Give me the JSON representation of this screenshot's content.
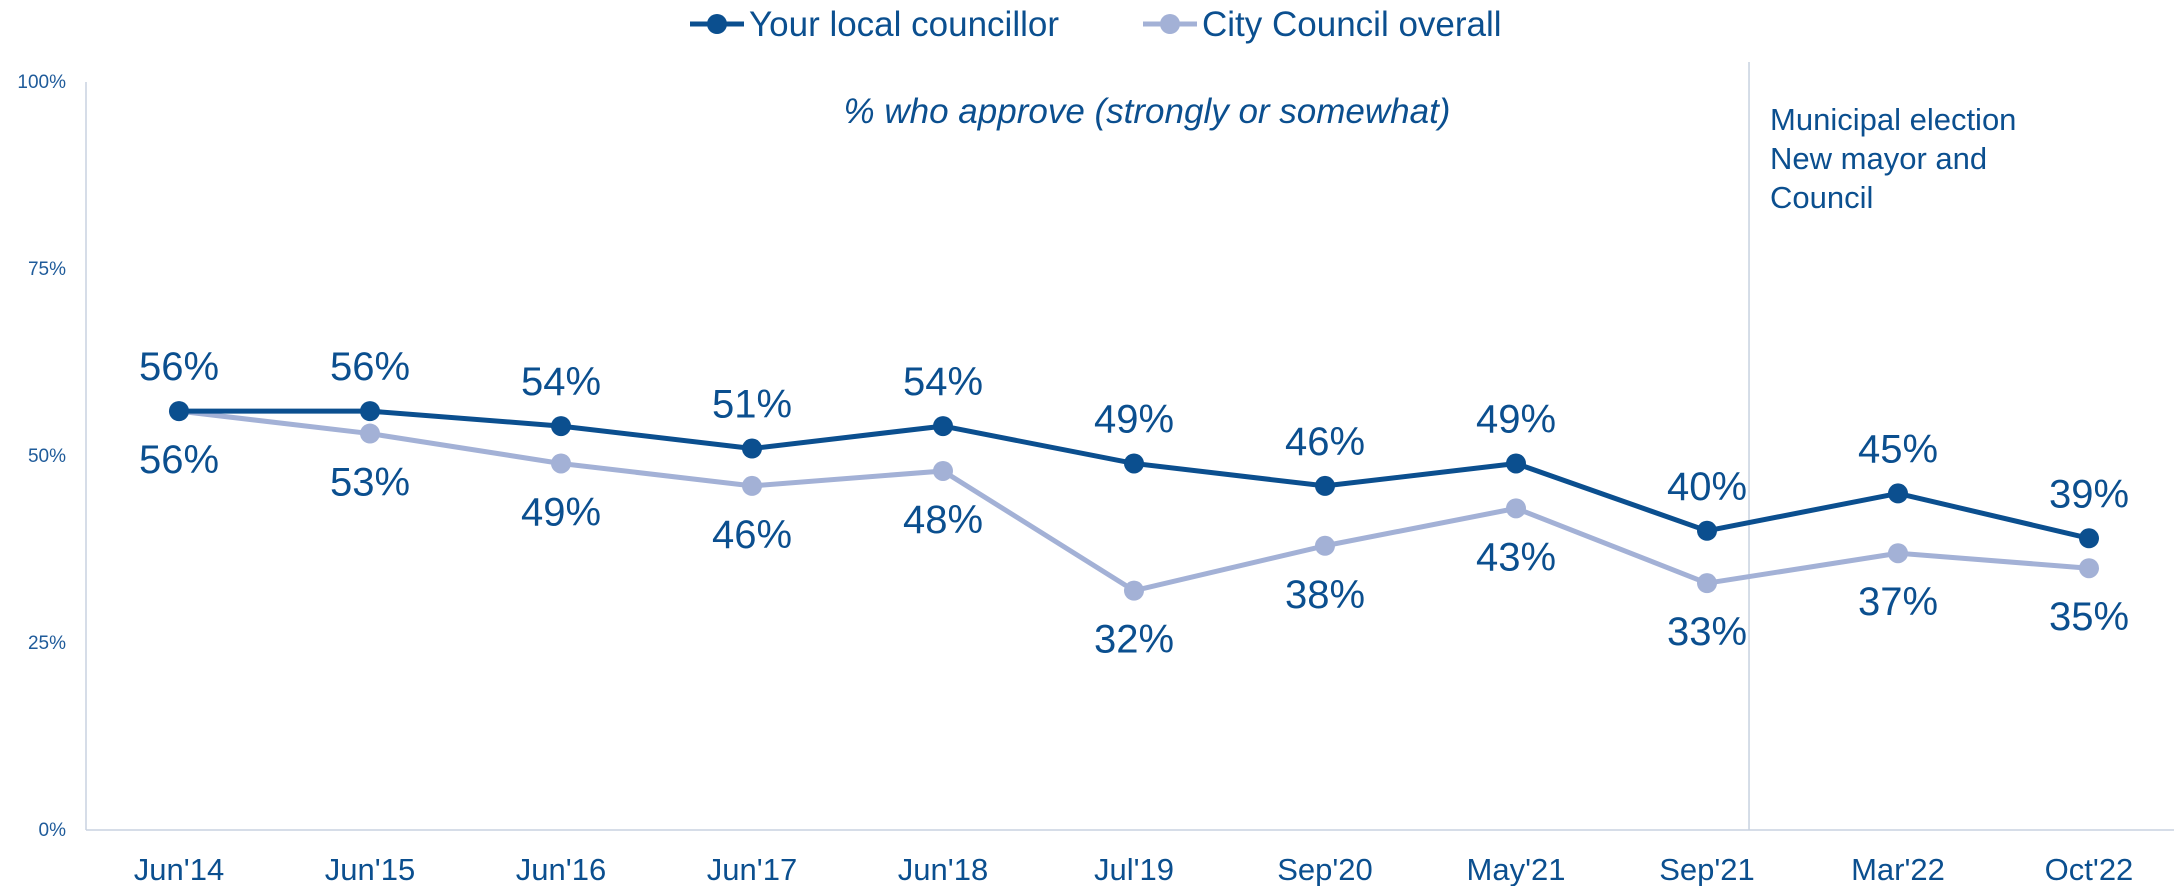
{
  "chart_data": {
    "type": "line",
    "subtitle": "% who approve (strongly or somewhat)",
    "categories": [
      "Jun'14",
      "Jun'15",
      "Jun'16",
      "Jun'17",
      "Jun'18",
      "Jul'19",
      "Sep'20",
      "May'21",
      "Sep'21",
      "Mar'22",
      "Oct'22"
    ],
    "series": [
      {
        "name": "Your local councillor",
        "color": "#0b4f8f",
        "values": [
          56,
          56,
          54,
          51,
          54,
          49,
          46,
          49,
          40,
          45,
          39
        ]
      },
      {
        "name": "City Council overall",
        "color": "#a3b1d6",
        "values": [
          56,
          53,
          49,
          46,
          48,
          32,
          38,
          43,
          33,
          37,
          35
        ]
      }
    ],
    "ylim": [
      0,
      100
    ],
    "yticks": [
      0,
      25,
      50,
      75,
      100
    ],
    "ytick_labels": [
      "0%",
      "25%",
      "50%",
      "75%",
      "100%"
    ],
    "value_suffix": "%",
    "legend_position": "top-center",
    "grid": false,
    "annotation": {
      "after_category": "Sep'21",
      "lines": [
        "Municipal election",
        "New mayor and",
        "Council"
      ]
    }
  }
}
